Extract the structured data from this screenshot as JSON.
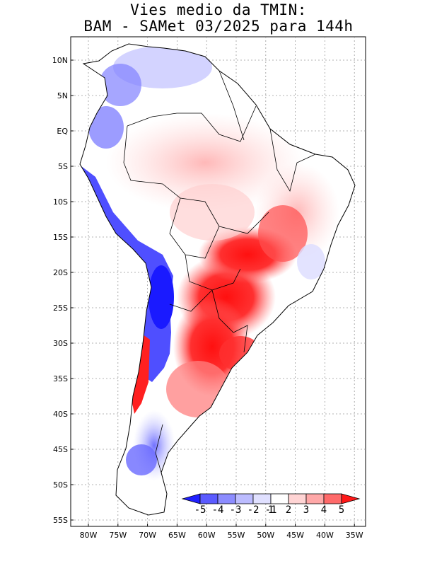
{
  "title": {
    "line1": "Vies medio da TMIN:",
    "line2": "BAM - SAMet 03/2025  para 144h"
  },
  "map": {
    "region": "South America",
    "lat_ticks": [
      "10N",
      "5N",
      "EQ",
      "5S",
      "10S",
      "15S",
      "20S",
      "25S",
      "30S",
      "35S",
      "40S",
      "45S",
      "50S",
      "55S"
    ],
    "lon_ticks": [
      "80W",
      "75W",
      "70W",
      "65W",
      "60W",
      "55W",
      "50W",
      "45W",
      "40W",
      "35W"
    ],
    "lon_range": [
      -83.5,
      -33.5
    ],
    "lat_range": [
      -56,
      13
    ]
  },
  "colorbar": {
    "labels": [
      "-5",
      "-4",
      "-3",
      "-2",
      "-1",
      "1",
      "2",
      "3",
      "4",
      "5"
    ],
    "colors": [
      "#2020ff",
      "#5a5aff",
      "#8c8cff",
      "#bcbcff",
      "#e0e0ff",
      "#ffffff",
      "#ffd4d4",
      "#ffa8a8",
      "#ff6a6a",
      "#ff1818"
    ]
  }
}
